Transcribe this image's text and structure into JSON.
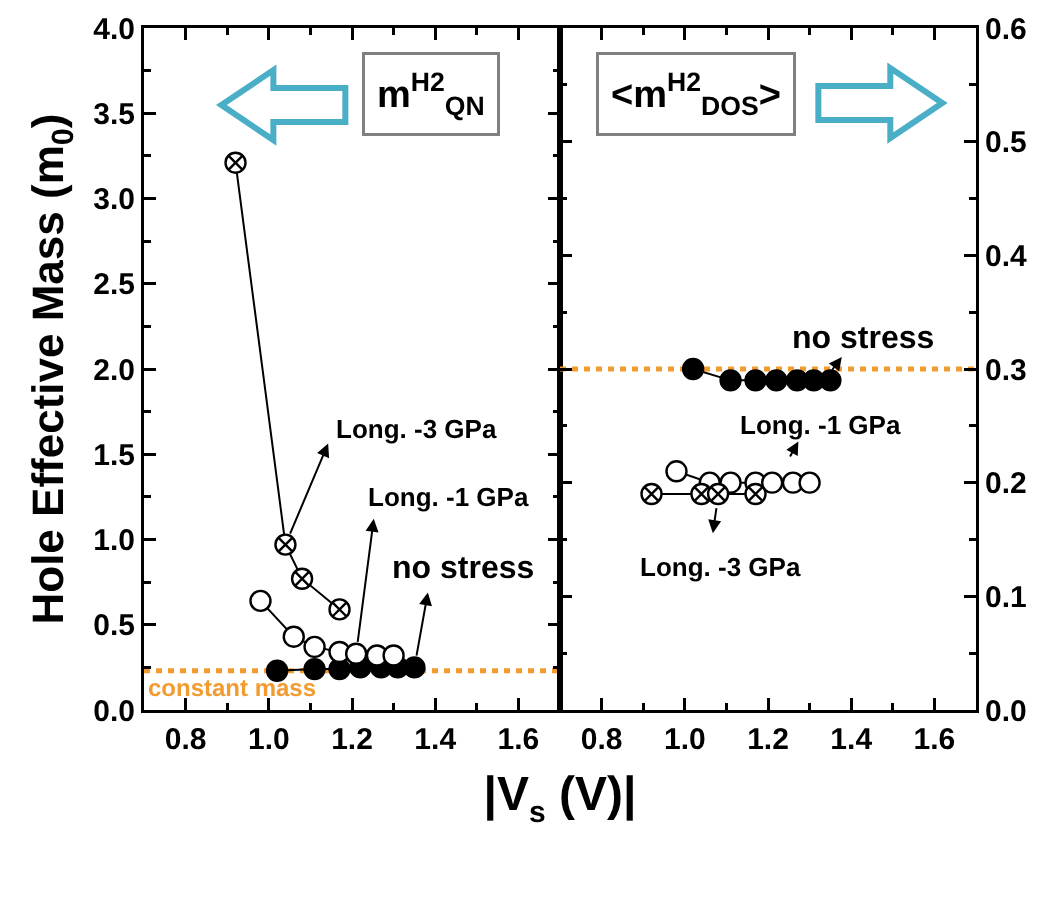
{
  "chart_data": [
    {
      "type": "line",
      "ylabel": "Hole Effective Mass (m$_{0}$)",
      "xlabel": "|V$_{s}$ (V)|",
      "annotations": [
        "m$^{H2}$$_{QN}$",
        {
          "text": "Long. -3 GPa",
          "x": 1.04,
          "y": 0.97
        },
        {
          "text": "Long. -1 GPa",
          "x": 1.21,
          "y": 0.33
        },
        {
          "text": "no stress",
          "x": 1.35,
          "y": 0.25
        }
      ],
      "xlim": [
        0.7,
        1.7
      ],
      "xticks": [
        0.8,
        {
          "value": 0.9,
          "label": null
        },
        {
          "value": 1,
          "label": "1.0"
        },
        {
          "value": 1.1,
          "label": null
        },
        1.2,
        {
          "value": 1.3,
          "label": null
        },
        1.4,
        {
          "value": 1.5,
          "label": null
        },
        1.6
      ],
      "ylim": [
        0,
        4
      ],
      "yticks": [
        {
          "value": 0,
          "label": "0.0"
        },
        {
          "value": 0.25,
          "label": null
        },
        0.5,
        {
          "value": 0.75,
          "label": null
        },
        {
          "value": 1,
          "label": "1.0"
        },
        {
          "value": 1.25,
          "label": null
        },
        1.5,
        {
          "value": 1.75,
          "label": null
        },
        {
          "value": 2,
          "label": "2.0"
        },
        {
          "value": 2.25,
          "label": null
        },
        2.5,
        {
          "value": 2.75,
          "label": null
        },
        {
          "value": 3,
          "label": "3.0"
        },
        {
          "value": 3.25,
          "label": null
        },
        3.5,
        {
          "value": 3.75,
          "label": null
        },
        {
          "value": 4,
          "label": "4.0"
        }
      ],
      "series": [
        {
          "color": "#000000",
          "marker": "circle",
          "x": [
            1.02,
            1.11,
            1.17,
            1.22,
            1.27,
            1.31,
            1.35
          ],
          "values": [
            0.23,
            0.24,
            0.24,
            0.25,
            0.25,
            0.25,
            0.25
          ]
        },
        {
          "color": "#ffffff",
          "marker": "circle",
          "x": [
            0.98,
            1.06,
            1.11,
            1.17,
            1.21,
            1.26,
            1.3
          ],
          "values": [
            0.64,
            0.43,
            0.37,
            0.34,
            0.33,
            0.32,
            0.32
          ]
        },
        {
          "color": "#ffffff",
          "marker": "cross",
          "x": [
            0.92,
            1.04,
            1.08,
            1.17
          ],
          "values": [
            3.21,
            0.97,
            0.77,
            0.59
          ]
        }
      ],
      "ref_lines": [
        {
          "axis": "y",
          "value": 0.23,
          "label": "constant mass",
          "color": "#f29b30",
          "line_style": "dotted"
        }
      ]
    },
    {
      "type": "line",
      "annotations": [
        "<m$^{H2}$$_{DOS}$>",
        "no stress",
        "Long. -1 GPa",
        "Long. -3 GPa"
      ],
      "xlim": [
        0.7,
        1.7
      ],
      "xticks": [
        0.8,
        {
          "value": 0.9,
          "label": null
        },
        {
          "value": 1,
          "label": "1.0"
        },
        {
          "value": 1.1,
          "label": null
        },
        1.2,
        {
          "value": 1.3,
          "label": null
        },
        1.4,
        {
          "value": 1.5,
          "label": null
        },
        1.6
      ],
      "y2lim": [
        0,
        0.6
      ],
      "y2ticks": [
        {
          "value": 0,
          "label": "0.0"
        },
        {
          "value": 0.05,
          "label": null
        },
        0.1,
        {
          "value": 0.15,
          "label": null
        },
        0.2,
        {
          "value": 0.25,
          "label": null
        },
        0.3,
        {
          "value": 0.35,
          "label": null
        },
        0.4,
        {
          "value": 0.45,
          "label": null
        },
        0.5,
        {
          "value": 0.55,
          "label": null
        },
        0.6
      ],
      "series": [
        {
          "color": "#000000",
          "marker": "circle",
          "axis": "y2",
          "x": [
            1.02,
            1.11,
            1.17,
            1.22,
            1.27,
            1.31,
            1.35
          ],
          "values": [
            0.3,
            0.29,
            0.29,
            0.29,
            0.29,
            0.29,
            0.29
          ]
        },
        {
          "color": "#ffffff",
          "marker": "circle",
          "axis": "y2",
          "x": [
            0.98,
            1.06,
            1.11,
            1.17,
            1.21,
            1.26,
            1.3
          ],
          "values": [
            0.21,
            0.2,
            0.2,
            0.2,
            0.2,
            0.2,
            0.2
          ]
        },
        {
          "color": "#ffffff",
          "marker": "cross",
          "axis": "y2",
          "x": [
            0.92,
            1.04,
            1.08,
            1.17
          ],
          "values": [
            0.19,
            0.19,
            0.19,
            0.19
          ]
        }
      ],
      "ref_lines": [
        {
          "axis": "y2",
          "value": 0.3,
          "color": "#f29b30",
          "line_style": "dotted"
        }
      ]
    }
  ]
}
